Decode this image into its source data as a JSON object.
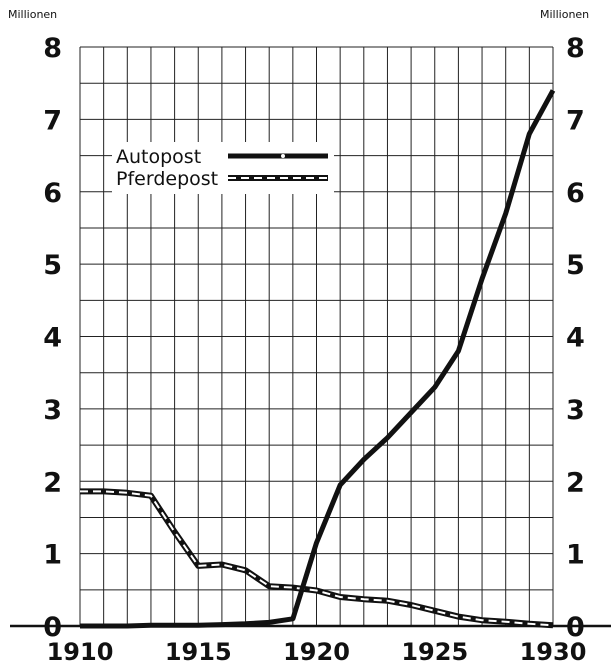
{
  "chart_data": {
    "type": "line",
    "left_axis_unit": "Millionen",
    "right_axis_unit": "Millionen",
    "ylim": [
      0,
      8
    ],
    "xlim": [
      1910,
      1930
    ],
    "y_ticks": [
      "0",
      "1",
      "2",
      "3",
      "4",
      "5",
      "6",
      "7",
      "8"
    ],
    "x_tick_labels": [
      "1910",
      "1915",
      "1920",
      "1925",
      "1930"
    ],
    "grid": true,
    "legend_position": "top-left",
    "series": [
      {
        "name": "Autopost",
        "style": "solid-thick",
        "color": "#111111",
        "x": [
          1910,
          1911,
          1912,
          1913,
          1914,
          1915,
          1916,
          1917,
          1918,
          1919,
          1920,
          1921,
          1922,
          1923,
          1924,
          1925,
          1926,
          1927,
          1928,
          1929,
          1930
        ],
        "values": [
          0.0,
          0.0,
          0.0,
          0.01,
          0.01,
          0.01,
          0.02,
          0.03,
          0.05,
          0.1,
          1.15,
          1.95,
          2.3,
          2.6,
          2.95,
          3.3,
          3.8,
          4.8,
          5.7,
          6.8,
          7.4
        ]
      },
      {
        "name": "Pferdepost",
        "style": "dashed-double",
        "color": "#111111",
        "x": [
          1910,
          1911,
          1912,
          1913,
          1914,
          1915,
          1916,
          1917,
          1918,
          1919,
          1920,
          1921,
          1922,
          1923,
          1924,
          1925,
          1926,
          1927,
          1928,
          1929,
          1930
        ],
        "values": [
          1.86,
          1.86,
          1.84,
          1.8,
          1.3,
          0.83,
          0.85,
          0.77,
          0.55,
          0.53,
          0.49,
          0.4,
          0.37,
          0.35,
          0.29,
          0.21,
          0.13,
          0.08,
          0.06,
          0.03,
          0.01
        ]
      }
    ]
  }
}
